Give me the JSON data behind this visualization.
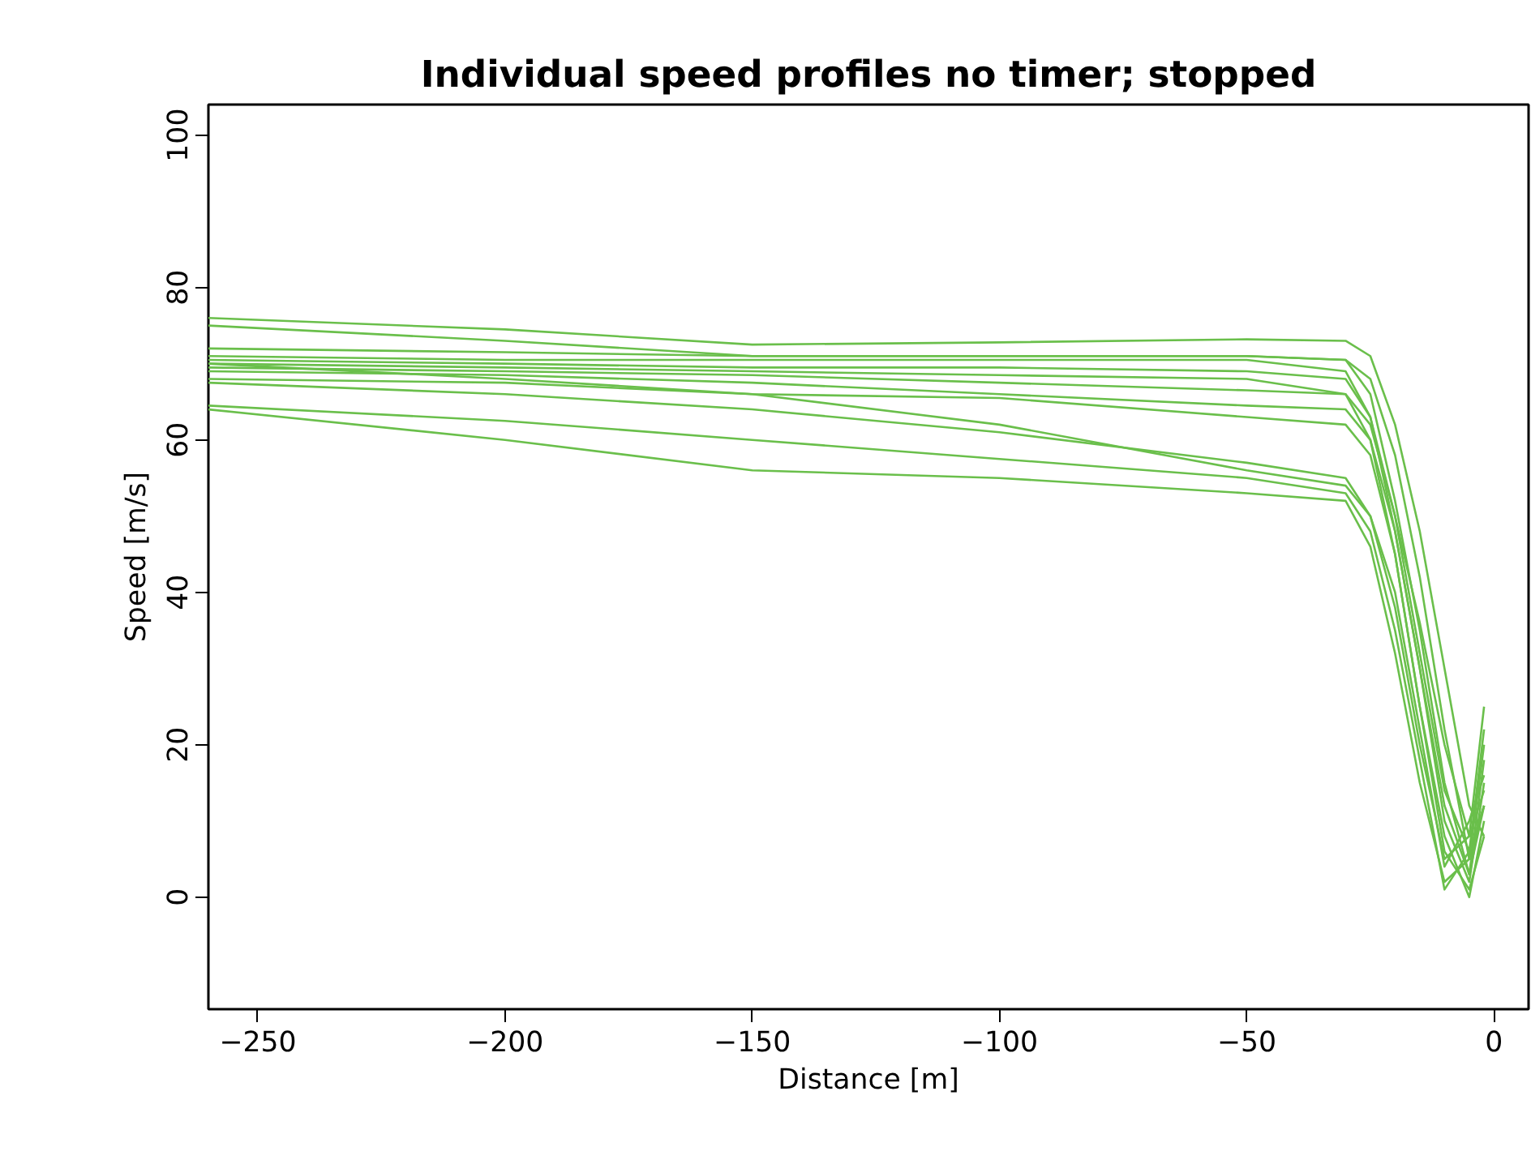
{
  "chart_data": {
    "type": "line",
    "title": "Individual speed profiles no timer; stopped",
    "xlabel": "Distance [m]",
    "ylabel": "Speed [m/s]",
    "x": [
      -260,
      -200,
      -150,
      -100,
      -50,
      -30,
      -25,
      -20,
      -15,
      -10,
      -5,
      -2
    ],
    "series": [
      {
        "color": "#6abf4b",
        "values": [
          76,
          74.5,
          72.5,
          72.8,
          73.2,
          73,
          71,
          62,
          48,
          30,
          12,
          8
        ]
      },
      {
        "color": "#6abf4b",
        "values": [
          75,
          73,
          71,
          71,
          71,
          70.5,
          68,
          58,
          42,
          22,
          5,
          12
        ]
      },
      {
        "color": "#6abf4b",
        "values": [
          72,
          71.5,
          71,
          71,
          71,
          70.5,
          66,
          52,
          35,
          15,
          3,
          18
        ]
      },
      {
        "color": "#6abf4b",
        "values": [
          71,
          70.5,
          70.5,
          70.5,
          70.5,
          69,
          63,
          50,
          32,
          14,
          6,
          22
        ]
      },
      {
        "color": "#6abf4b",
        "values": [
          70.5,
          70,
          69.5,
          69.5,
          69,
          68,
          63,
          48,
          30,
          10,
          2,
          15
        ]
      },
      {
        "color": "#6abf4b",
        "values": [
          70,
          69.5,
          69,
          68.5,
          68,
          66,
          60,
          45,
          25,
          8,
          0,
          10
        ]
      },
      {
        "color": "#6abf4b",
        "values": [
          69.5,
          69,
          68.5,
          67.5,
          66.5,
          66,
          62,
          50,
          36,
          20,
          8,
          25
        ]
      },
      {
        "color": "#6abf4b",
        "values": [
          69,
          68.5,
          67.5,
          66,
          64.5,
          64,
          60,
          48,
          30,
          12,
          3,
          12
        ]
      },
      {
        "color": "#6abf4b",
        "values": [
          68,
          67.5,
          66,
          65.5,
          63,
          62,
          58,
          45,
          25,
          6,
          1,
          8
        ]
      },
      {
        "color": "#6abf4b",
        "values": [
          67.5,
          66,
          64,
          61,
          57,
          55,
          50,
          38,
          20,
          5,
          8,
          14
        ]
      },
      {
        "color": "#6abf4b",
        "values": [
          70,
          68,
          66,
          62,
          56,
          54,
          50,
          40,
          22,
          4,
          10,
          16
        ]
      },
      {
        "color": "#6abf4b",
        "values": [
          64.5,
          62.5,
          60,
          57.5,
          55,
          53,
          48,
          35,
          18,
          1,
          6,
          12
        ]
      },
      {
        "color": "#6abf4b",
        "values": [
          64,
          60,
          56,
          55,
          53,
          52,
          46,
          32,
          15,
          2,
          5,
          20
        ]
      }
    ],
    "xlim": [
      -260,
      7
    ],
    "ylim": [
      -14.7,
      104
    ],
    "xticks": [
      -250,
      -200,
      -150,
      -100,
      -50,
      0
    ],
    "yticks": [
      0,
      20,
      40,
      60,
      80,
      100
    ],
    "grid": false,
    "line_style": "solid"
  }
}
